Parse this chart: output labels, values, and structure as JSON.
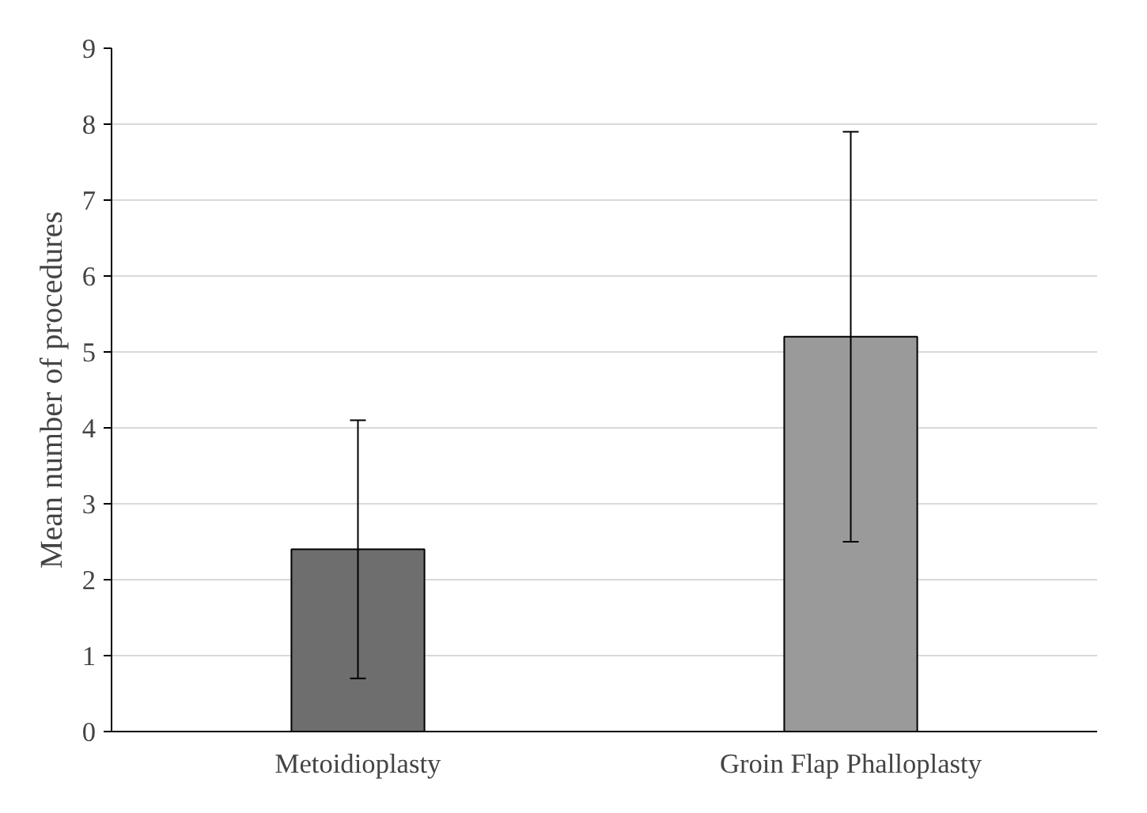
{
  "chart_data": {
    "type": "bar",
    "ylabel": "Mean number of procedures",
    "categories": [
      "Metoidioplasty",
      "Groin Flap Phalloplasty"
    ],
    "values": [
      2.4,
      5.2
    ],
    "colors": [
      "#6e6e6e",
      "#9a9a9a"
    ],
    "errors": [
      1.7,
      2.7
    ],
    "ylim": [
      0,
      9
    ],
    "yticks": [
      0,
      1,
      2,
      3,
      4,
      5,
      6,
      7,
      8,
      9
    ],
    "grid": "y"
  }
}
